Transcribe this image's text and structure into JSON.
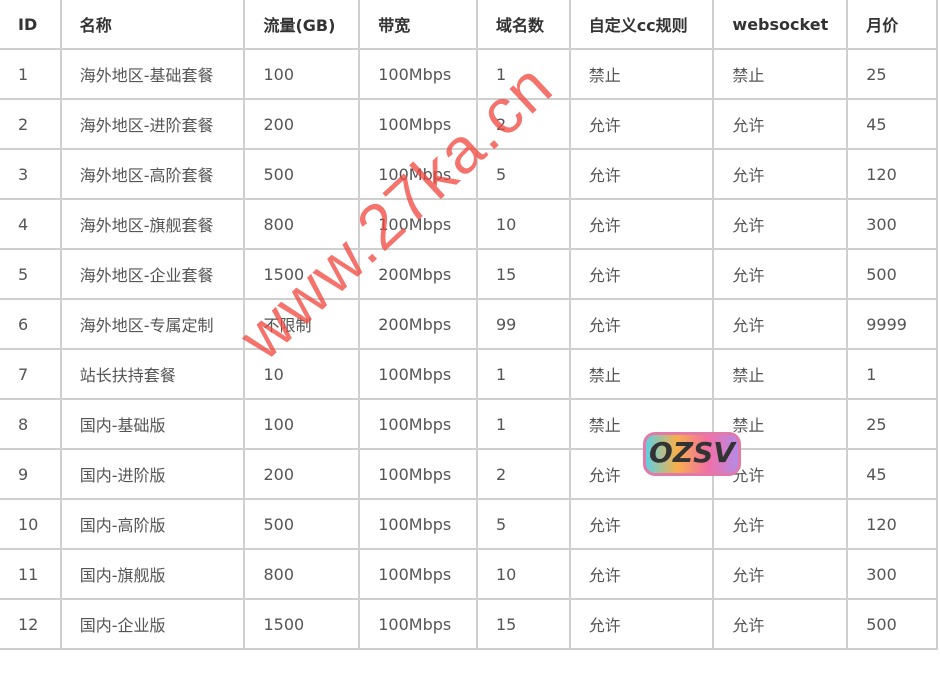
{
  "columns": [
    "ID",
    "名称",
    "流量(GB)",
    "带宽",
    "域名数",
    "自定义cc规则",
    "websocket",
    "月价"
  ],
  "rows": [
    [
      "1",
      "海外地区-基础套餐",
      "100",
      "100Mbps",
      "1",
      "禁止",
      "禁止",
      "25"
    ],
    [
      "2",
      "海外地区-进阶套餐",
      "200",
      "100Mbps",
      "2",
      "允许",
      "允许",
      "45"
    ],
    [
      "3",
      "海外地区-高阶套餐",
      "500",
      "100Mbps",
      "5",
      "允许",
      "允许",
      "120"
    ],
    [
      "4",
      "海外地区-旗舰套餐",
      "800",
      "100Mbps",
      "10",
      "允许",
      "允许",
      "300"
    ],
    [
      "5",
      "海外地区-企业套餐",
      "1500",
      "200Mbps",
      "15",
      "允许",
      "允许",
      "500"
    ],
    [
      "6",
      "海外地区-专属定制",
      "不限制",
      "200Mbps",
      "99",
      "允许",
      "允许",
      "9999"
    ],
    [
      "7",
      "站长扶持套餐",
      "10",
      "100Mbps",
      "1",
      "禁止",
      "禁止",
      "1"
    ],
    [
      "8",
      "国内-基础版",
      "100",
      "100Mbps",
      "1",
      "禁止",
      "禁止",
      "25"
    ],
    [
      "9",
      "国内-进阶版",
      "200",
      "100Mbps",
      "2",
      "允许",
      "允许",
      "45"
    ],
    [
      "10",
      "国内-高阶版",
      "500",
      "100Mbps",
      "5",
      "允许",
      "允许",
      "120"
    ],
    [
      "11",
      "国内-旗舰版",
      "800",
      "100Mbps",
      "10",
      "允许",
      "允许",
      "300"
    ],
    [
      "12",
      "国内-企业版",
      "1500",
      "100Mbps",
      "15",
      "允许",
      "允许",
      "500"
    ]
  ],
  "watermark": {
    "text": "www.27ka.cn",
    "color": "#f0463c"
  },
  "logo": {
    "text": "OZSV"
  }
}
